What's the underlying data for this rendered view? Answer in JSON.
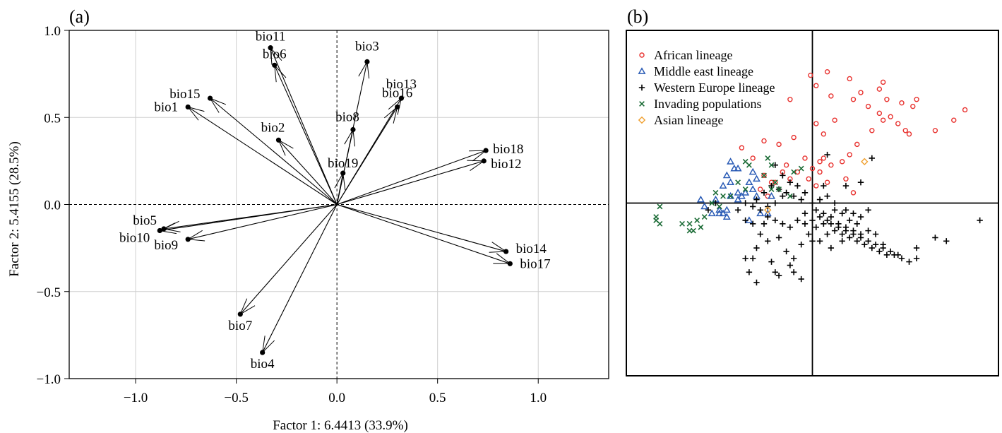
{
  "chart_data": [
    {
      "type": "scatter",
      "panel_label": "(a)",
      "xlabel": "Factor 1: 6.4413 (33.9%)",
      "ylabel": "Factor 2: 5.4155 (28.5%)",
      "xlim": [
        -1.33,
        1.35
      ],
      "ylim": [
        -1.0,
        1.0
      ],
      "xticks": [
        -1.0,
        -0.5,
        0.0,
        0.5,
        1.0
      ],
      "xtick_labels": [
        "−1.0",
        "−0.5",
        "0.0",
        "0.5",
        "1.0"
      ],
      "yticks": [
        -1.0,
        -0.5,
        0.0,
        0.5,
        1.0
      ],
      "ytick_labels": [
        "−1.0",
        "−0.5",
        "0.0",
        "0.5",
        "1.0"
      ],
      "grid": true,
      "vectors": [
        {
          "label": "bio1",
          "x": -0.74,
          "y": 0.56
        },
        {
          "label": "bio2",
          "x": -0.29,
          "y": 0.37
        },
        {
          "label": "bio3",
          "x": 0.15,
          "y": 0.82
        },
        {
          "label": "bio4",
          "x": -0.37,
          "y": -0.85
        },
        {
          "label": "bio5",
          "x": -0.86,
          "y": -0.14
        },
        {
          "label": "bio6",
          "x": -0.31,
          "y": 0.8
        },
        {
          "label": "bio7",
          "x": -0.48,
          "y": -0.63
        },
        {
          "label": "bio8",
          "x": 0.08,
          "y": 0.43
        },
        {
          "label": "bio9",
          "x": -0.74,
          "y": -0.2
        },
        {
          "label": "bio10",
          "x": -0.88,
          "y": -0.15
        },
        {
          "label": "bio11",
          "x": -0.33,
          "y": 0.9
        },
        {
          "label": "bio12",
          "x": 0.73,
          "y": 0.25
        },
        {
          "label": "bio13",
          "x": 0.32,
          "y": 0.61
        },
        {
          "label": "bio14",
          "x": 0.84,
          "y": -0.27
        },
        {
          "label": "bio15",
          "x": -0.63,
          "y": 0.61
        },
        {
          "label": "bio16",
          "x": 0.3,
          "y": 0.56
        },
        {
          "label": "bio17",
          "x": 0.86,
          "y": -0.34
        },
        {
          "label": "bio18",
          "x": 0.74,
          "y": 0.31
        },
        {
          "label": "bio19",
          "x": 0.03,
          "y": 0.18
        }
      ]
    },
    {
      "type": "scatter",
      "panel_label": "(b)",
      "xlabel": "",
      "ylabel": "",
      "xlim": [
        -5,
        5
      ],
      "ylim": [
        -5,
        5
      ],
      "grid": false,
      "axes_lines_at": [
        0,
        0
      ],
      "legend_position": "top-left",
      "series": [
        {
          "name": "African lineage",
          "marker": "circle",
          "color": "#e8312e",
          "points": [
            [
              -0.05,
              3.7
            ],
            [
              -0.6,
              3.0
            ],
            [
              0.1,
              3.4
            ],
            [
              0.4,
              3.8
            ],
            [
              0.5,
              3.1
            ],
            [
              1.0,
              3.6
            ],
            [
              1.1,
              3.0
            ],
            [
              1.3,
              3.2
            ],
            [
              1.5,
              2.8
            ],
            [
              1.8,
              3.3
            ],
            [
              1.9,
              3.5
            ],
            [
              2.0,
              3.0
            ],
            [
              1.6,
              2.1
            ],
            [
              1.8,
              2.6
            ],
            [
              1.9,
              2.4
            ],
            [
              2.1,
              2.5
            ],
            [
              2.3,
              2.3
            ],
            [
              2.5,
              2.1
            ],
            [
              2.6,
              2.0
            ],
            [
              2.4,
              2.9
            ],
            [
              2.7,
              2.8
            ],
            [
              2.8,
              3.0
            ],
            [
              3.3,
              2.1
            ],
            [
              3.8,
              2.4
            ],
            [
              4.1,
              2.7
            ],
            [
              0.6,
              2.4
            ],
            [
              0.3,
              2.0
            ],
            [
              0.1,
              2.3
            ],
            [
              -0.5,
              1.9
            ],
            [
              -0.9,
              1.7
            ],
            [
              -1.3,
              1.8
            ],
            [
              -1.6,
              1.3
            ],
            [
              -1.9,
              1.6
            ],
            [
              0.9,
              0.7
            ],
            [
              1.0,
              1.4
            ],
            [
              1.2,
              1.7
            ],
            [
              0.3,
              1.3
            ],
            [
              -0.2,
              1.3
            ],
            [
              -0.4,
              0.9
            ],
            [
              0.0,
              1.0
            ],
            [
              0.2,
              0.9
            ],
            [
              0.5,
              1.1
            ],
            [
              0.8,
              1.2
            ],
            [
              -0.6,
              0.7
            ],
            [
              -0.7,
              1.1
            ],
            [
              -0.8,
              0.9
            ],
            [
              -0.1,
              0.7
            ],
            [
              0.1,
              0.5
            ],
            [
              0.4,
              0.6
            ],
            [
              -1.0,
              0.6
            ],
            [
              -1.3,
              0.8
            ],
            [
              -1.1,
              0.6
            ],
            [
              -1.4,
              0.4
            ],
            [
              -1.2,
              0.2
            ],
            [
              0.2,
              1.2
            ],
            [
              1.1,
              0.3
            ]
          ]
        },
        {
          "name": "Middle east lineage",
          "marker": "triangle",
          "color": "#2a5bb5",
          "points": [
            [
              -2.1,
              1.0
            ],
            [
              -2.2,
              1.2
            ],
            [
              -2.0,
              1.0
            ],
            [
              -2.3,
              0.8
            ],
            [
              -2.4,
              0.5
            ],
            [
              -2.2,
              0.6
            ],
            [
              -1.6,
              0.9
            ],
            [
              -1.7,
              0.6
            ],
            [
              -1.5,
              0.7
            ],
            [
              -1.6,
              0.4
            ],
            [
              -1.8,
              0.3
            ],
            [
              -2.0,
              0.1
            ],
            [
              -2.2,
              0.2
            ],
            [
              -2.6,
              0.1
            ],
            [
              -2.5,
              -0.3
            ],
            [
              -2.7,
              -0.3
            ],
            [
              -2.0,
              0.3
            ],
            [
              -1.9,
              0.2
            ],
            [
              -1.5,
              0.2
            ],
            [
              -1.1,
              0.2
            ],
            [
              -1.4,
              -0.3
            ],
            [
              -1.7,
              -0.5
            ],
            [
              -2.3,
              -0.4
            ],
            [
              -2.5,
              -0.2
            ],
            [
              -2.3,
              -0.2
            ],
            [
              -2.9,
              -0.1
            ],
            [
              -2.4,
              -0.3
            ],
            [
              -1.2,
              -0.3
            ],
            [
              -3.0,
              0.1
            ]
          ]
        },
        {
          "name": "Western Europe lineage",
          "marker": "plus",
          "color": "#000000",
          "points": [
            [
              2.8,
              -1.3
            ],
            [
              3.3,
              -1.0
            ],
            [
              3.6,
              -1.1
            ],
            [
              4.5,
              -0.5
            ],
            [
              0.2,
              -0.4
            ],
            [
              0.5,
              -0.6
            ],
            [
              0.7,
              -0.7
            ],
            [
              0.9,
              -0.8
            ],
            [
              1.1,
              -0.9
            ],
            [
              1.3,
              -1.0
            ],
            [
              1.5,
              -1.1
            ],
            [
              1.7,
              -1.2
            ],
            [
              1.9,
              -1.3
            ],
            [
              2.1,
              -1.4
            ],
            [
              2.3,
              -1.5
            ],
            [
              0.3,
              -0.6
            ],
            [
              0.6,
              -0.8
            ],
            [
              0.8,
              -0.9
            ],
            [
              1.0,
              -1.0
            ],
            [
              1.2,
              -1.1
            ],
            [
              1.4,
              -1.2
            ],
            [
              1.6,
              -1.3
            ],
            [
              1.8,
              -1.4
            ],
            [
              2.0,
              -1.5
            ],
            [
              0.4,
              -0.5
            ],
            [
              0.7,
              -0.6
            ],
            [
              0.9,
              -0.7
            ],
            [
              1.1,
              -0.8
            ],
            [
              1.3,
              -0.9
            ],
            [
              0.1,
              -0.2
            ],
            [
              0.3,
              -0.3
            ],
            [
              0.5,
              -0.4
            ],
            [
              0.6,
              -0.2
            ],
            [
              0.8,
              -0.3
            ],
            [
              1.0,
              -0.5
            ],
            [
              1.2,
              -0.6
            ],
            [
              1.5,
              -0.8
            ],
            [
              1.7,
              -0.9
            ],
            [
              0.0,
              0.0
            ],
            [
              0.2,
              0.1
            ],
            [
              0.4,
              0.2
            ],
            [
              0.6,
              0.0
            ],
            [
              0.9,
              -0.2
            ],
            [
              1.3,
              -0.4
            ],
            [
              -0.2,
              -0.3
            ],
            [
              -0.4,
              -0.5
            ],
            [
              -0.6,
              -0.7
            ],
            [
              -0.8,
              -0.6
            ],
            [
              -1.0,
              -0.5
            ],
            [
              -1.2,
              -0.4
            ],
            [
              -1.4,
              -0.2
            ],
            [
              -1.6,
              -0.1
            ],
            [
              -1.8,
              0.0
            ],
            [
              -2.0,
              -0.2
            ],
            [
              -0.3,
              0.1
            ],
            [
              -0.5,
              0.2
            ],
            [
              -0.7,
              0.3
            ],
            [
              -0.9,
              0.4
            ],
            [
              -1.1,
              0.5
            ],
            [
              -1.3,
              0.3
            ],
            [
              -1.5,
              0.1
            ],
            [
              -0.2,
              0.3
            ],
            [
              -0.4,
              0.5
            ],
            [
              -0.6,
              0.6
            ],
            [
              -0.8,
              0.2
            ],
            [
              -1.0,
              0.0
            ],
            [
              -1.2,
              -0.1
            ],
            [
              -1.6,
              -0.6
            ],
            [
              -1.4,
              -0.9
            ],
            [
              -1.2,
              -1.1
            ],
            [
              -1.5,
              -1.3
            ],
            [
              -1.6,
              -1.6
            ],
            [
              -0.9,
              -1.0
            ],
            [
              -0.7,
              -1.4
            ],
            [
              -0.5,
              -1.6
            ],
            [
              -0.3,
              -1.2
            ],
            [
              -0.1,
              -0.9
            ],
            [
              0.1,
              -0.7
            ],
            [
              -0.5,
              -2.0
            ],
            [
              -0.6,
              -1.8
            ],
            [
              -0.3,
              -2.2
            ],
            [
              -0.9,
              -2.1
            ],
            [
              -1.1,
              -1.7
            ],
            [
              -1.5,
              -2.3
            ],
            [
              -1.7,
              -2.0
            ],
            [
              -2.8,
              -0.2
            ],
            [
              0.2,
              -1.1
            ],
            [
              0.5,
              -1.3
            ],
            [
              0.8,
              -1.1
            ],
            [
              0.4,
              -0.9
            ],
            [
              1.5,
              -0.2
            ],
            [
              1.1,
              -0.3
            ],
            [
              0.9,
              0.5
            ],
            [
              1.3,
              0.6
            ],
            [
              1.6,
              1.3
            ],
            [
              0.4,
              1.4
            ],
            [
              -1.0,
              1.1
            ],
            [
              -0.8,
              0.8
            ],
            [
              0.0,
              -0.5
            ],
            [
              -0.2,
              -0.6
            ],
            [
              0.3,
              0.5
            ],
            [
              2.4,
              -1.6
            ],
            [
              2.6,
              -1.7
            ],
            [
              2.8,
              -1.6
            ],
            [
              2.2,
              -1.5
            ],
            [
              1.9,
              -1.2
            ],
            [
              0.0,
              -1.1
            ],
            [
              -2.6,
              0.0
            ],
            [
              -1.8,
              -0.5
            ],
            [
              -1.3,
              -0.6
            ],
            [
              -1.8,
              -1.6
            ],
            [
              -1.0,
              -2.0
            ]
          ]
        },
        {
          "name": "Invading populations",
          "marker": "x",
          "color": "#1a6b35",
          "points": [
            [
              -4.1,
              -0.1
            ],
            [
              -4.2,
              -0.5
            ],
            [
              -4.1,
              -0.6
            ],
            [
              -4.2,
              -0.4
            ],
            [
              -3.1,
              -0.5
            ],
            [
              -2.9,
              -0.4
            ],
            [
              -3.3,
              -0.6
            ],
            [
              -3.0,
              -0.7
            ],
            [
              -3.3,
              -0.8
            ],
            [
              -3.2,
              -0.8
            ],
            [
              -3.5,
              -0.6
            ],
            [
              -2.5,
              -0.1
            ],
            [
              -2.7,
              0.0
            ],
            [
              -2.4,
              0.2
            ],
            [
              -2.2,
              0.2
            ],
            [
              -2.6,
              0.3
            ],
            [
              -1.8,
              1.2
            ],
            [
              -1.7,
              1.1
            ],
            [
              -1.2,
              1.3
            ],
            [
              -1.1,
              1.1
            ],
            [
              -0.5,
              0.9
            ],
            [
              -0.3,
              1.0
            ],
            [
              -1.3,
              0.8
            ],
            [
              -1.1,
              0.4
            ],
            [
              -2.0,
              0.6
            ],
            [
              -1.8,
              0.4
            ],
            [
              -0.9,
              0.4
            ],
            [
              -1.0,
              0.6
            ],
            [
              -0.6,
              0.2
            ]
          ]
        },
        {
          "name": "Asian lineage",
          "marker": "diamond",
          "color": "#f0a030",
          "points": [
            [
              1.4,
              1.2
            ],
            [
              -1.2,
              -0.2
            ]
          ]
        }
      ]
    }
  ]
}
